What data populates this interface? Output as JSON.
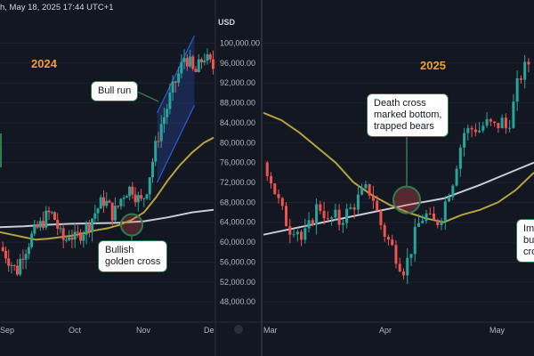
{
  "header": {
    "text": "h, May 18, 2025 17:44 UTC+1"
  },
  "colors": {
    "up": "#26a69a",
    "down": "#ef5350",
    "ma50": "#b5a43c",
    "ma200": "#c9ccd4",
    "channel": "#2f5bd8",
    "circle": "#2e7d4f"
  },
  "chart_data": [
    {
      "type": "candlestick",
      "panel": "left",
      "title": "2024",
      "axis_unit": "USD",
      "ylim": [
        44000,
        102000
      ],
      "y_ticks": [
        "100,000.00",
        "96,000.00",
        "92,000.00",
        "88,000.00",
        "84,000.00",
        "80,000.00",
        "76,000.00",
        "72,000.00",
        "68,000.00",
        "64,000.00",
        "60,000.00",
        "56,000.00",
        "52,000.00",
        "48,000.00"
      ],
      "x_ticks": [
        "Sep",
        "Oct",
        "Nov",
        "De"
      ],
      "close_path": [
        [
          0,
          59000
        ],
        [
          5,
          57500
        ],
        [
          10,
          55500
        ],
        [
          14,
          54000
        ],
        [
          18,
          57500
        ],
        [
          22,
          59000
        ],
        [
          26,
          61000
        ],
        [
          30,
          62500
        ],
        [
          34,
          63500
        ],
        [
          38,
          65000
        ],
        [
          42,
          66000
        ],
        [
          46,
          64500
        ],
        [
          50,
          61500
        ],
        [
          54,
          60000
        ],
        [
          58,
          62000
        ],
        [
          62,
          60500
        ],
        [
          66,
          61500
        ],
        [
          70,
          62500
        ],
        [
          74,
          63500
        ],
        [
          78,
          65500
        ],
        [
          82,
          67000
        ],
        [
          86,
          68500
        ],
        [
          90,
          67500
        ],
        [
          94,
          65500
        ],
        [
          98,
          67000
        ],
        [
          102,
          69500
        ],
        [
          106,
          70500
        ],
        [
          110,
          71000
        ],
        [
          114,
          69000
        ],
        [
          118,
          68000
        ],
        [
          122,
          70500
        ],
        [
          126,
          75000
        ],
        [
          130,
          79500
        ],
        [
          134,
          83500
        ],
        [
          138,
          86000
        ],
        [
          142,
          89500
        ],
        [
          146,
          92000
        ],
        [
          150,
          94500
        ],
        [
          154,
          97500
        ],
        [
          158,
          96000
        ],
        [
          162,
          93500
        ],
        [
          166,
          95500
        ],
        [
          170,
          97500
        ],
        [
          174,
          96000
        ],
        [
          178,
          95000
        ]
      ],
      "ma50": [
        [
          0,
          62000
        ],
        [
          10,
          61500
        ],
        [
          20,
          61000
        ],
        [
          30,
          60500
        ],
        [
          40,
          60700
        ],
        [
          50,
          61000
        ],
        [
          60,
          61300
        ],
        [
          70,
          61800
        ],
        [
          80,
          62400
        ],
        [
          90,
          62800
        ],
        [
          100,
          63500
        ],
        [
          110,
          64500
        ],
        [
          120,
          66000
        ],
        [
          130,
          69000
        ],
        [
          140,
          72500
        ],
        [
          150,
          75500
        ],
        [
          160,
          78000
        ],
        [
          170,
          80000
        ],
        [
          178,
          81000
        ]
      ],
      "ma200": [
        [
          0,
          63000
        ],
        [
          20,
          63200
        ],
        [
          40,
          63500
        ],
        [
          60,
          63700
        ],
        [
          80,
          63800
        ],
        [
          100,
          63900
        ],
        [
          120,
          64200
        ],
        [
          140,
          65000
        ],
        [
          160,
          66000
        ],
        [
          178,
          66500
        ]
      ],
      "channel_upper": [
        [
          131,
          86000
        ],
        [
          162,
          101500
        ]
      ],
      "channel_lower": [
        [
          131,
          72000
        ],
        [
          162,
          87500
        ]
      ],
      "annotations": [
        {
          "label": "Bull run"
        },
        {
          "label": "Bullish\ngolden cross",
          "price": 63500
        }
      ]
    },
    {
      "type": "candlestick",
      "panel": "right",
      "title": "2025",
      "ylim": [
        44000,
        102000
      ],
      "x_ticks": [
        "Mar",
        "Apr",
        "May"
      ],
      "close_path": [
        [
          0,
          76000
        ],
        [
          6,
          74000
        ],
        [
          12,
          70500
        ],
        [
          18,
          67500
        ],
        [
          24,
          64500
        ],
        [
          30,
          62500
        ],
        [
          36,
          63500
        ],
        [
          42,
          60500
        ],
        [
          48,
          62000
        ],
        [
          54,
          64500
        ],
        [
          60,
          67500
        ],
        [
          66,
          66500
        ],
        [
          72,
          63500
        ],
        [
          78,
          65500
        ],
        [
          84,
          64000
        ],
        [
          90,
          65500
        ],
        [
          96,
          66500
        ],
        [
          102,
          68000
        ],
        [
          108,
          69500
        ],
        [
          114,
          70500
        ],
        [
          120,
          70000
        ],
        [
          126,
          66000
        ],
        [
          132,
          62500
        ],
        [
          138,
          60500
        ],
        [
          144,
          58500
        ],
        [
          150,
          56000
        ],
        [
          156,
          54500
        ],
        [
          162,
          57500
        ],
        [
          168,
          61500
        ],
        [
          174,
          64500
        ],
        [
          180,
          65500
        ],
        [
          186,
          64000
        ],
        [
          192,
          63800
        ],
        [
          198,
          66000
        ],
        [
          204,
          69500
        ],
        [
          210,
          72500
        ],
        [
          216,
          77500
        ],
        [
          222,
          82000
        ],
        [
          228,
          82500
        ],
        [
          234,
          83000
        ],
        [
          240,
          82500
        ],
        [
          246,
          84000
        ],
        [
          252,
          83500
        ],
        [
          258,
          83000
        ],
        [
          264,
          84500
        ],
        [
          270,
          82500
        ],
        [
          276,
          86500
        ],
        [
          282,
          92000
        ],
        [
          288,
          94500
        ],
        [
          294,
          96000
        ],
        [
          300,
          98000
        ]
      ],
      "ma50": [
        [
          0,
          86000
        ],
        [
          20,
          84500
        ],
        [
          40,
          82000
        ],
        [
          60,
          79000
        ],
        [
          80,
          76000
        ],
        [
          100,
          72000
        ],
        [
          120,
          69500
        ],
        [
          140,
          67500
        ],
        [
          160,
          66000
        ],
        [
          180,
          64800
        ],
        [
          200,
          64000
        ],
        [
          220,
          65500
        ],
        [
          240,
          66500
        ],
        [
          260,
          68000
        ],
        [
          280,
          70500
        ],
        [
          300,
          74000
        ]
      ],
      "ma200": [
        [
          0,
          61500
        ],
        [
          40,
          63000
        ],
        [
          80,
          64500
        ],
        [
          120,
          66000
        ],
        [
          160,
          67500
        ],
        [
          200,
          68800
        ],
        [
          240,
          71500
        ],
        [
          280,
          74500
        ],
        [
          300,
          76000
        ]
      ],
      "annotations": [
        {
          "label": "Death cross\nmarked bottom,\ntrapped bears",
          "price": 68500
        },
        {
          "label": "Imp\nbul\ncro"
        }
      ]
    }
  ]
}
